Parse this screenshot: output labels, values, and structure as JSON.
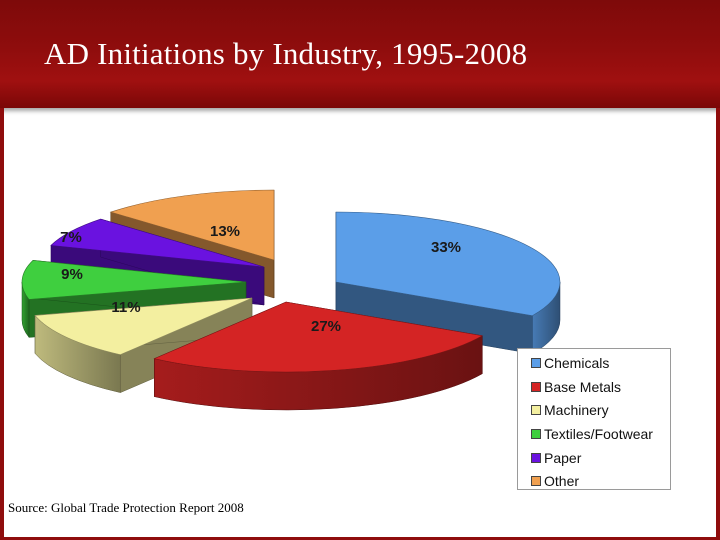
{
  "slide": {
    "title": "AD Initiations by Industry, 1995-2008",
    "source": "Source: Global Trade Protection Report 2008",
    "header_color": "#8f0d0d"
  },
  "chart_data": {
    "type": "pie",
    "style": "3d-exploded",
    "legend_position": "bottom-right",
    "categories": [
      "Chemicals",
      "Base Metals",
      "Machinery",
      "Textiles/Footwear",
      "Paper",
      "Other"
    ],
    "values": [
      33,
      27,
      11,
      9,
      7,
      13
    ],
    "labels": [
      "33%",
      "27%",
      "11%",
      "9%",
      "7%",
      "13%"
    ],
    "colors": [
      "#5b9ee8",
      "#d42424",
      "#f3efa0",
      "#3fcf3f",
      "#6a12e0",
      "#f0a050"
    ]
  }
}
